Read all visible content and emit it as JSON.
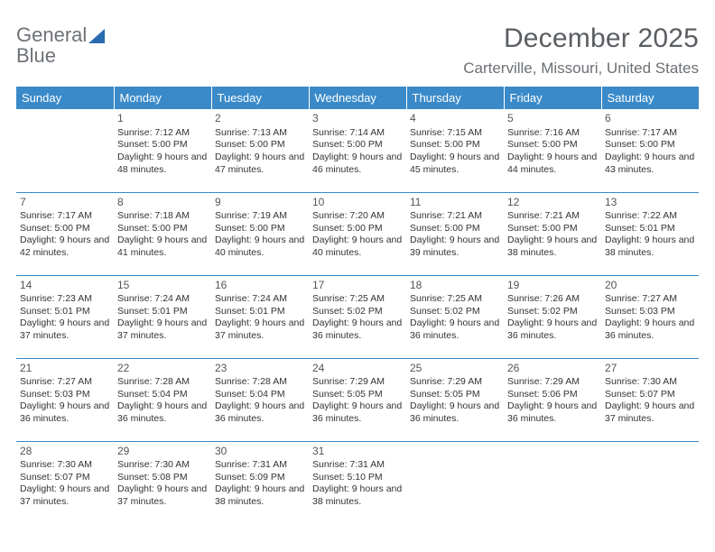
{
  "brand": {
    "name_gray": "General",
    "name_blue": "Blue",
    "triangle_color": "#2a6bb0"
  },
  "header": {
    "title": "December 2025",
    "location": "Carterville, Missouri, United States"
  },
  "colors": {
    "header_bg": "#3a8ac9",
    "header_fg": "#ffffff",
    "grid_line": "#3a8ac9",
    "text": "#333333",
    "muted_text": "#6c7074",
    "title_text": "#5a5e62"
  },
  "daynames": [
    "Sunday",
    "Monday",
    "Tuesday",
    "Wednesday",
    "Thursday",
    "Friday",
    "Saturday"
  ],
  "weeks": [
    [
      {
        "day": "",
        "sunrise": "",
        "sunset": "",
        "daylight": ""
      },
      {
        "day": "1",
        "sunrise": "Sunrise: 7:12 AM",
        "sunset": "Sunset: 5:00 PM",
        "daylight": "Daylight: 9 hours and 48 minutes."
      },
      {
        "day": "2",
        "sunrise": "Sunrise: 7:13 AM",
        "sunset": "Sunset: 5:00 PM",
        "daylight": "Daylight: 9 hours and 47 minutes."
      },
      {
        "day": "3",
        "sunrise": "Sunrise: 7:14 AM",
        "sunset": "Sunset: 5:00 PM",
        "daylight": "Daylight: 9 hours and 46 minutes."
      },
      {
        "day": "4",
        "sunrise": "Sunrise: 7:15 AM",
        "sunset": "Sunset: 5:00 PM",
        "daylight": "Daylight: 9 hours and 45 minutes."
      },
      {
        "day": "5",
        "sunrise": "Sunrise: 7:16 AM",
        "sunset": "Sunset: 5:00 PM",
        "daylight": "Daylight: 9 hours and 44 minutes."
      },
      {
        "day": "6",
        "sunrise": "Sunrise: 7:17 AM",
        "sunset": "Sunset: 5:00 PM",
        "daylight": "Daylight: 9 hours and 43 minutes."
      }
    ],
    [
      {
        "day": "7",
        "sunrise": "Sunrise: 7:17 AM",
        "sunset": "Sunset: 5:00 PM",
        "daylight": "Daylight: 9 hours and 42 minutes."
      },
      {
        "day": "8",
        "sunrise": "Sunrise: 7:18 AM",
        "sunset": "Sunset: 5:00 PM",
        "daylight": "Daylight: 9 hours and 41 minutes."
      },
      {
        "day": "9",
        "sunrise": "Sunrise: 7:19 AM",
        "sunset": "Sunset: 5:00 PM",
        "daylight": "Daylight: 9 hours and 40 minutes."
      },
      {
        "day": "10",
        "sunrise": "Sunrise: 7:20 AM",
        "sunset": "Sunset: 5:00 PM",
        "daylight": "Daylight: 9 hours and 40 minutes."
      },
      {
        "day": "11",
        "sunrise": "Sunrise: 7:21 AM",
        "sunset": "Sunset: 5:00 PM",
        "daylight": "Daylight: 9 hours and 39 minutes."
      },
      {
        "day": "12",
        "sunrise": "Sunrise: 7:21 AM",
        "sunset": "Sunset: 5:00 PM",
        "daylight": "Daylight: 9 hours and 38 minutes."
      },
      {
        "day": "13",
        "sunrise": "Sunrise: 7:22 AM",
        "sunset": "Sunset: 5:01 PM",
        "daylight": "Daylight: 9 hours and 38 minutes."
      }
    ],
    [
      {
        "day": "14",
        "sunrise": "Sunrise: 7:23 AM",
        "sunset": "Sunset: 5:01 PM",
        "daylight": "Daylight: 9 hours and 37 minutes."
      },
      {
        "day": "15",
        "sunrise": "Sunrise: 7:24 AM",
        "sunset": "Sunset: 5:01 PM",
        "daylight": "Daylight: 9 hours and 37 minutes."
      },
      {
        "day": "16",
        "sunrise": "Sunrise: 7:24 AM",
        "sunset": "Sunset: 5:01 PM",
        "daylight": "Daylight: 9 hours and 37 minutes."
      },
      {
        "day": "17",
        "sunrise": "Sunrise: 7:25 AM",
        "sunset": "Sunset: 5:02 PM",
        "daylight": "Daylight: 9 hours and 36 minutes."
      },
      {
        "day": "18",
        "sunrise": "Sunrise: 7:25 AM",
        "sunset": "Sunset: 5:02 PM",
        "daylight": "Daylight: 9 hours and 36 minutes."
      },
      {
        "day": "19",
        "sunrise": "Sunrise: 7:26 AM",
        "sunset": "Sunset: 5:02 PM",
        "daylight": "Daylight: 9 hours and 36 minutes."
      },
      {
        "day": "20",
        "sunrise": "Sunrise: 7:27 AM",
        "sunset": "Sunset: 5:03 PM",
        "daylight": "Daylight: 9 hours and 36 minutes."
      }
    ],
    [
      {
        "day": "21",
        "sunrise": "Sunrise: 7:27 AM",
        "sunset": "Sunset: 5:03 PM",
        "daylight": "Daylight: 9 hours and 36 minutes."
      },
      {
        "day": "22",
        "sunrise": "Sunrise: 7:28 AM",
        "sunset": "Sunset: 5:04 PM",
        "daylight": "Daylight: 9 hours and 36 minutes."
      },
      {
        "day": "23",
        "sunrise": "Sunrise: 7:28 AM",
        "sunset": "Sunset: 5:04 PM",
        "daylight": "Daylight: 9 hours and 36 minutes."
      },
      {
        "day": "24",
        "sunrise": "Sunrise: 7:29 AM",
        "sunset": "Sunset: 5:05 PM",
        "daylight": "Daylight: 9 hours and 36 minutes."
      },
      {
        "day": "25",
        "sunrise": "Sunrise: 7:29 AM",
        "sunset": "Sunset: 5:05 PM",
        "daylight": "Daylight: 9 hours and 36 minutes."
      },
      {
        "day": "26",
        "sunrise": "Sunrise: 7:29 AM",
        "sunset": "Sunset: 5:06 PM",
        "daylight": "Daylight: 9 hours and 36 minutes."
      },
      {
        "day": "27",
        "sunrise": "Sunrise: 7:30 AM",
        "sunset": "Sunset: 5:07 PM",
        "daylight": "Daylight: 9 hours and 37 minutes."
      }
    ],
    [
      {
        "day": "28",
        "sunrise": "Sunrise: 7:30 AM",
        "sunset": "Sunset: 5:07 PM",
        "daylight": "Daylight: 9 hours and 37 minutes."
      },
      {
        "day": "29",
        "sunrise": "Sunrise: 7:30 AM",
        "sunset": "Sunset: 5:08 PM",
        "daylight": "Daylight: 9 hours and 37 minutes."
      },
      {
        "day": "30",
        "sunrise": "Sunrise: 7:31 AM",
        "sunset": "Sunset: 5:09 PM",
        "daylight": "Daylight: 9 hours and 38 minutes."
      },
      {
        "day": "31",
        "sunrise": "Sunrise: 7:31 AM",
        "sunset": "Sunset: 5:10 PM",
        "daylight": "Daylight: 9 hours and 38 minutes."
      },
      {
        "day": "",
        "sunrise": "",
        "sunset": "",
        "daylight": ""
      },
      {
        "day": "",
        "sunrise": "",
        "sunset": "",
        "daylight": ""
      },
      {
        "day": "",
        "sunrise": "",
        "sunset": "",
        "daylight": ""
      }
    ]
  ]
}
